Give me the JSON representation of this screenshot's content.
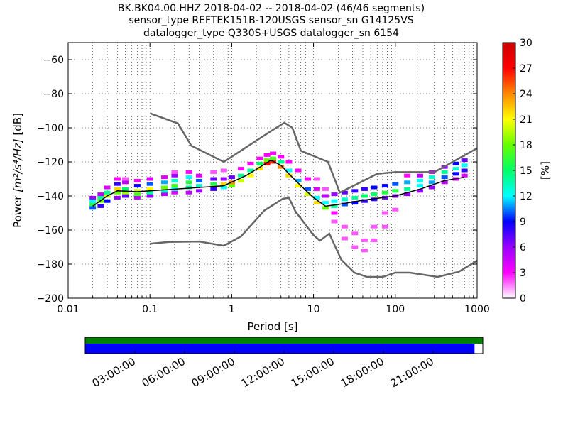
{
  "chart_data": {
    "type": "heatmap",
    "title_lines": [
      "BK.BK04.00.HHZ   2018-04-02 -- 2018-04-02  (46/46 segments)",
      "sensor_type REFTEK151B-120USGS sensor_sn G14125VS",
      "datalogger_type Q330S+USGS datalogger_sn 6154"
    ],
    "xlabel": "Period [s]",
    "ylabel_prefix": "Power ",
    "ylabel_units": "[m²/s⁴/Hz]",
    "ylabel_suffix": " [dB]",
    "x_scale": "log",
    "xlim": [
      0.01,
      1000
    ],
    "ylim": [
      -200,
      -50
    ],
    "x_ticks": [
      {
        "value": 0.01,
        "label": "0.01"
      },
      {
        "value": 0.1,
        "label": "0.1"
      },
      {
        "value": 1,
        "label": "1"
      },
      {
        "value": 10,
        "label": "10"
      },
      {
        "value": 100,
        "label": "100"
      },
      {
        "value": 1000,
        "label": "1000"
      }
    ],
    "y_ticks": [
      {
        "value": -200,
        "label": "−200"
      },
      {
        "value": -180,
        "label": "−180"
      },
      {
        "value": -160,
        "label": "−160"
      },
      {
        "value": -140,
        "label": "−140"
      },
      {
        "value": -120,
        "label": "−120"
      },
      {
        "value": -100,
        "label": "−100"
      },
      {
        "value": -80,
        "label": "−80"
      },
      {
        "value": -60,
        "label": "−60"
      }
    ],
    "grid": "dotted",
    "colorbar": {
      "label": "[%]",
      "min": 0,
      "max": 30,
      "ticks": [
        {
          "value": 0,
          "label": "0"
        },
        {
          "value": 3,
          "label": "3"
        },
        {
          "value": 6,
          "label": "6"
        },
        {
          "value": 9,
          "label": "9"
        },
        {
          "value": 12,
          "label": "12"
        },
        {
          "value": 15,
          "label": "15"
        },
        {
          "value": 18,
          "label": "18"
        },
        {
          "value": 21,
          "label": "21"
        },
        {
          "value": 24,
          "label": "24"
        },
        {
          "value": 27,
          "label": "27"
        },
        {
          "value": 30,
          "label": "30"
        }
      ],
      "colors": [
        "#ffffff",
        "#ff00ff",
        "#9900ff",
        "#0000ff",
        "#00ffff",
        "#00ff66",
        "#66ff00",
        "#ffff00",
        "#ff8800",
        "#ff0000",
        "#cc0000"
      ]
    },
    "noise_models": [
      {
        "name": "NHNM",
        "points": [
          [
            0.1,
            -91.5
          ],
          [
            0.22,
            -97.4
          ],
          [
            0.32,
            -110.5
          ],
          [
            0.8,
            -120
          ],
          [
            3,
            -102
          ],
          [
            4.4,
            -97
          ],
          [
            5.5,
            -100
          ],
          [
            7,
            -113.5
          ],
          [
            15,
            -120
          ],
          [
            21,
            -138
          ],
          [
            60,
            -127
          ],
          [
            100,
            -126
          ],
          [
            300,
            -126
          ],
          [
            1000,
            -112
          ]
        ]
      },
      {
        "name": "NLNM",
        "points": [
          [
            0.1,
            -168
          ],
          [
            0.17,
            -167
          ],
          [
            0.4,
            -166.7
          ],
          [
            0.8,
            -169.2
          ],
          [
            1.3,
            -163.7
          ],
          [
            2.5,
            -148.6
          ],
          [
            4.2,
            -141.7
          ],
          [
            5,
            -141
          ],
          [
            6,
            -149
          ],
          [
            10,
            -163
          ],
          [
            12,
            -166.2
          ],
          [
            15.6,
            -162.1
          ],
          [
            21.9,
            -177.5
          ],
          [
            31.6,
            -185
          ],
          [
            45,
            -187.5
          ],
          [
            70,
            -187.5
          ],
          [
            100,
            -185
          ],
          [
            150,
            -185
          ],
          [
            330,
            -187.5
          ],
          [
            600,
            -184.4
          ],
          [
            1000,
            -178
          ]
        ]
      }
    ],
    "percentile_curve": [
      [
        0.02,
        -146
      ],
      [
        0.03,
        -140
      ],
      [
        0.04,
        -137
      ],
      [
        0.07,
        -137.5
      ],
      [
        0.1,
        -137
      ],
      [
        0.2,
        -136
      ],
      [
        0.4,
        -135
      ],
      [
        0.8,
        -134
      ],
      [
        1.5,
        -128
      ],
      [
        2.6,
        -121
      ],
      [
        3,
        -119
      ],
      [
        4,
        -122
      ],
      [
        5,
        -127
      ],
      [
        7,
        -134
      ],
      [
        10,
        -141
      ],
      [
        14,
        -146
      ],
      [
        20,
        -145
      ],
      [
        40,
        -142.5
      ],
      [
        100,
        -140
      ],
      [
        200,
        -136
      ],
      [
        400,
        -131
      ],
      [
        700,
        -129
      ]
    ],
    "psd_density": [
      {
        "x": 0.02,
        "y": -147,
        "pct": 10
      },
      {
        "x": 0.02,
        "y": -145,
        "pct": 16
      },
      {
        "x": 0.02,
        "y": -143,
        "pct": 12
      },
      {
        "x": 0.02,
        "y": -141,
        "pct": 6
      },
      {
        "x": 0.025,
        "y": -146,
        "pct": 8
      },
      {
        "x": 0.025,
        "y": -143,
        "pct": 18
      },
      {
        "x": 0.025,
        "y": -141,
        "pct": 14
      },
      {
        "x": 0.025,
        "y": -139,
        "pct": 5
      },
      {
        "x": 0.03,
        "y": -143,
        "pct": 9
      },
      {
        "x": 0.03,
        "y": -140,
        "pct": 20
      },
      {
        "x": 0.03,
        "y": -138,
        "pct": 14
      },
      {
        "x": 0.03,
        "y": -135,
        "pct": 4
      },
      {
        "x": 0.04,
        "y": -141,
        "pct": 6
      },
      {
        "x": 0.04,
        "y": -138,
        "pct": 18
      },
      {
        "x": 0.04,
        "y": -136,
        "pct": 22
      },
      {
        "x": 0.04,
        "y": -133,
        "pct": 8
      },
      {
        "x": 0.04,
        "y": -130,
        "pct": 3
      },
      {
        "x": 0.05,
        "y": -140,
        "pct": 7
      },
      {
        "x": 0.05,
        "y": -138,
        "pct": 19
      },
      {
        "x": 0.05,
        "y": -136,
        "pct": 15
      },
      {
        "x": 0.05,
        "y": -132,
        "pct": 5
      },
      {
        "x": 0.05,
        "y": -130,
        "pct": 2
      },
      {
        "x": 0.07,
        "y": -141,
        "pct": 5
      },
      {
        "x": 0.07,
        "y": -139,
        "pct": 17
      },
      {
        "x": 0.07,
        "y": -137,
        "pct": 20
      },
      {
        "x": 0.07,
        "y": -134,
        "pct": 9
      },
      {
        "x": 0.07,
        "y": -131,
        "pct": 3
      },
      {
        "x": 0.1,
        "y": -140,
        "pct": 6
      },
      {
        "x": 0.1,
        "y": -138,
        "pct": 14
      },
      {
        "x": 0.1,
        "y": -136,
        "pct": 21
      },
      {
        "x": 0.1,
        "y": -133,
        "pct": 10
      },
      {
        "x": 0.1,
        "y": -130,
        "pct": 4
      },
      {
        "x": 0.15,
        "y": -139,
        "pct": 5
      },
      {
        "x": 0.15,
        "y": -137,
        "pct": 13
      },
      {
        "x": 0.15,
        "y": -135,
        "pct": 18
      },
      {
        "x": 0.15,
        "y": -132,
        "pct": 11
      },
      {
        "x": 0.15,
        "y": -129,
        "pct": 4
      },
      {
        "x": 0.2,
        "y": -138,
        "pct": 4
      },
      {
        "x": 0.2,
        "y": -136,
        "pct": 12
      },
      {
        "x": 0.2,
        "y": -134,
        "pct": 17
      },
      {
        "x": 0.2,
        "y": -131,
        "pct": 13
      },
      {
        "x": 0.2,
        "y": -128,
        "pct": 6
      },
      {
        "x": 0.2,
        "y": -126,
        "pct": 2
      },
      {
        "x": 0.3,
        "y": -138,
        "pct": 5
      },
      {
        "x": 0.3,
        "y": -135,
        "pct": 14
      },
      {
        "x": 0.3,
        "y": -132,
        "pct": 16
      },
      {
        "x": 0.3,
        "y": -129,
        "pct": 12
      },
      {
        "x": 0.3,
        "y": -126,
        "pct": 3
      },
      {
        "x": 0.4,
        "y": -137,
        "pct": 6
      },
      {
        "x": 0.4,
        "y": -134,
        "pct": 13
      },
      {
        "x": 0.4,
        "y": -131,
        "pct": 10
      },
      {
        "x": 0.4,
        "y": -128,
        "pct": 4
      },
      {
        "x": 0.6,
        "y": -136,
        "pct": 8
      },
      {
        "x": 0.6,
        "y": -133,
        "pct": 16
      },
      {
        "x": 0.6,
        "y": -130,
        "pct": 7
      },
      {
        "x": 0.6,
        "y": -126,
        "pct": 2
      },
      {
        "x": 0.8,
        "y": -135,
        "pct": 12
      },
      {
        "x": 0.8,
        "y": -133,
        "pct": 22
      },
      {
        "x": 0.8,
        "y": -130,
        "pct": 6
      },
      {
        "x": 0.8,
        "y": -125,
        "pct": 2
      },
      {
        "x": 1.0,
        "y": -134,
        "pct": 18
      },
      {
        "x": 1.0,
        "y": -132,
        "pct": 24
      },
      {
        "x": 1.0,
        "y": -129,
        "pct": 7
      },
      {
        "x": 1.3,
        "y": -131,
        "pct": 20
      },
      {
        "x": 1.3,
        "y": -128,
        "pct": 14
      },
      {
        "x": 1.3,
        "y": -124,
        "pct": 3
      },
      {
        "x": 1.7,
        "y": -128,
        "pct": 21
      },
      {
        "x": 1.7,
        "y": -125,
        "pct": 14
      },
      {
        "x": 1.7,
        "y": -121,
        "pct": 3
      },
      {
        "x": 2.2,
        "y": -124,
        "pct": 22
      },
      {
        "x": 2.2,
        "y": -121,
        "pct": 15
      },
      {
        "x": 2.2,
        "y": -118,
        "pct": 3
      },
      {
        "x": 2.7,
        "y": -121,
        "pct": 27
      },
      {
        "x": 2.7,
        "y": -119,
        "pct": 18
      },
      {
        "x": 2.7,
        "y": -116,
        "pct": 3
      },
      {
        "x": 3.2,
        "y": -120,
        "pct": 26
      },
      {
        "x": 3.2,
        "y": -118,
        "pct": 17
      },
      {
        "x": 3.2,
        "y": -115,
        "pct": 3
      },
      {
        "x": 4.0,
        "y": -123,
        "pct": 24
      },
      {
        "x": 4.0,
        "y": -120,
        "pct": 14
      },
      {
        "x": 4.0,
        "y": -117,
        "pct": 3
      },
      {
        "x": 5.0,
        "y": -128,
        "pct": 22
      },
      {
        "x": 5.0,
        "y": -125,
        "pct": 12
      },
      {
        "x": 5.0,
        "y": -120,
        "pct": 3
      },
      {
        "x": 6.5,
        "y": -134,
        "pct": 21
      },
      {
        "x": 6.5,
        "y": -131,
        "pct": 11
      },
      {
        "x": 6.5,
        "y": -125,
        "pct": 3
      },
      {
        "x": 8.5,
        "y": -139,
        "pct": 20
      },
      {
        "x": 8.5,
        "y": -136,
        "pct": 10
      },
      {
        "x": 8.5,
        "y": -130,
        "pct": 3
      },
      {
        "x": 11,
        "y": -144,
        "pct": 22
      },
      {
        "x": 11,
        "y": -141,
        "pct": 12
      },
      {
        "x": 11,
        "y": -136,
        "pct": 4
      },
      {
        "x": 11,
        "y": -130,
        "pct": 2
      },
      {
        "x": 14,
        "y": -147,
        "pct": 18
      },
      {
        "x": 14,
        "y": -144,
        "pct": 12
      },
      {
        "x": 14,
        "y": -140,
        "pct": 5
      },
      {
        "x": 14,
        "y": -136,
        "pct": 2
      },
      {
        "x": 18,
        "y": -146,
        "pct": 14
      },
      {
        "x": 18,
        "y": -143,
        "pct": 12
      },
      {
        "x": 18,
        "y": -139,
        "pct": 6
      },
      {
        "x": 18,
        "y": -150,
        "pct": 3
      },
      {
        "x": 18,
        "y": -155,
        "pct": 2
      },
      {
        "x": 24,
        "y": -145,
        "pct": 10
      },
      {
        "x": 24,
        "y": -142,
        "pct": 13
      },
      {
        "x": 24,
        "y": -138,
        "pct": 7
      },
      {
        "x": 24,
        "y": -158,
        "pct": 2
      },
      {
        "x": 24,
        "y": -165,
        "pct": 2
      },
      {
        "x": 32,
        "y": -144,
        "pct": 9
      },
      {
        "x": 32,
        "y": -141,
        "pct": 14
      },
      {
        "x": 32,
        "y": -137,
        "pct": 8
      },
      {
        "x": 32,
        "y": -162,
        "pct": 2
      },
      {
        "x": 32,
        "y": -170,
        "pct": 2
      },
      {
        "x": 42,
        "y": -143,
        "pct": 8
      },
      {
        "x": 42,
        "y": -140,
        "pct": 15
      },
      {
        "x": 42,
        "y": -136,
        "pct": 8
      },
      {
        "x": 42,
        "y": -166,
        "pct": 2
      },
      {
        "x": 42,
        "y": -172,
        "pct": 2
      },
      {
        "x": 55,
        "y": -142,
        "pct": 8
      },
      {
        "x": 55,
        "y": -139,
        "pct": 15
      },
      {
        "x": 55,
        "y": -135,
        "pct": 9
      },
      {
        "x": 55,
        "y": -158,
        "pct": 2
      },
      {
        "x": 55,
        "y": -166,
        "pct": 2
      },
      {
        "x": 75,
        "y": -141,
        "pct": 7
      },
      {
        "x": 75,
        "y": -138,
        "pct": 16
      },
      {
        "x": 75,
        "y": -134,
        "pct": 9
      },
      {
        "x": 75,
        "y": -150,
        "pct": 2
      },
      {
        "x": 75,
        "y": -158,
        "pct": 2
      },
      {
        "x": 100,
        "y": -140,
        "pct": 6
      },
      {
        "x": 100,
        "y": -137,
        "pct": 16
      },
      {
        "x": 100,
        "y": -133,
        "pct": 10
      },
      {
        "x": 100,
        "y": -148,
        "pct": 2
      },
      {
        "x": 140,
        "y": -139,
        "pct": 6
      },
      {
        "x": 140,
        "y": -136,
        "pct": 14
      },
      {
        "x": 140,
        "y": -132,
        "pct": 11
      },
      {
        "x": 140,
        "y": -128,
        "pct": 3
      },
      {
        "x": 200,
        "y": -137,
        "pct": 6
      },
      {
        "x": 200,
        "y": -134,
        "pct": 12
      },
      {
        "x": 200,
        "y": -131,
        "pct": 12
      },
      {
        "x": 200,
        "y": -128,
        "pct": 5
      },
      {
        "x": 280,
        "y": -135,
        "pct": 6
      },
      {
        "x": 280,
        "y": -132,
        "pct": 11
      },
      {
        "x": 280,
        "y": -129,
        "pct": 13
      },
      {
        "x": 280,
        "y": -126,
        "pct": 5
      },
      {
        "x": 400,
        "y": -132,
        "pct": 5
      },
      {
        "x": 400,
        "y": -129,
        "pct": 10
      },
      {
        "x": 400,
        "y": -126,
        "pct": 14
      },
      {
        "x": 400,
        "y": -123,
        "pct": 6
      },
      {
        "x": 550,
        "y": -130,
        "pct": 4
      },
      {
        "x": 550,
        "y": -127,
        "pct": 9
      },
      {
        "x": 550,
        "y": -124,
        "pct": 13
      },
      {
        "x": 550,
        "y": -121,
        "pct": 9
      },
      {
        "x": 700,
        "y": -128,
        "pct": 4
      },
      {
        "x": 700,
        "y": -125,
        "pct": 8
      },
      {
        "x": 700,
        "y": -122,
        "pct": 12
      },
      {
        "x": 700,
        "y": -119,
        "pct": 7
      }
    ],
    "coverage": {
      "start_label_hours": 0,
      "end_label_hours": 24,
      "tick_labels": [
        {
          "hour": 3,
          "label": "03:00:00"
        },
        {
          "hour": 6,
          "label": "06:00:00"
        },
        {
          "hour": 9,
          "label": "09:00:00"
        },
        {
          "hour": 12,
          "label": "12:00:00"
        },
        {
          "hour": 15,
          "label": "15:00:00"
        },
        {
          "hour": 18,
          "label": "18:00:00"
        },
        {
          "hour": 21,
          "label": "21:00:00"
        }
      ],
      "data_available": [
        0,
        24
      ],
      "psd_used": [
        0,
        23.5
      ],
      "colors": {
        "available": "#008000",
        "used": "#0000ff"
      }
    }
  }
}
